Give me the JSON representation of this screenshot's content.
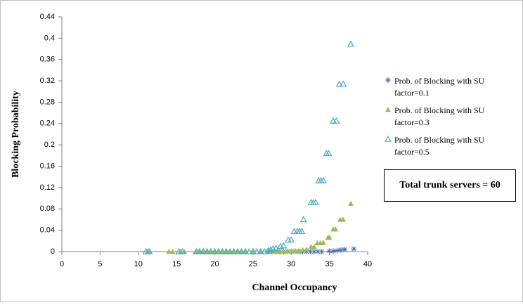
{
  "chart_data": {
    "type": "scatter",
    "x_label": "Channel Occupancy",
    "y_label": "Blocking Probability",
    "annotation": "Total trunk servers = 60",
    "xlim": [
      0,
      40
    ],
    "xticks": [
      0,
      5,
      10,
      15,
      20,
      25,
      30,
      35,
      40
    ],
    "ylim": [
      0,
      0.44
    ],
    "yticks": [
      0,
      0.04,
      0.08,
      0.12,
      0.16,
      0.2,
      0.24,
      0.28,
      0.32,
      0.36,
      0.4,
      0.44
    ],
    "legend": "right",
    "series": [
      {
        "name": "Prob. of Blocking with SU factor=0.1",
        "color": "#4a6fb5",
        "marker": "asterisk",
        "x": [
          27,
          27.5,
          28,
          28.5,
          29,
          29.5,
          30,
          30.5,
          31,
          31.5,
          32,
          32.5,
          33,
          33.5,
          34,
          35,
          35.5,
          36,
          36.5,
          37,
          38.2
        ],
        "values": [
          0,
          0,
          0,
          0,
          0,
          0,
          0,
          0,
          0,
          0,
          0,
          0,
          0,
          0,
          0,
          0.001,
          0.001,
          0.002,
          0.003,
          0.004,
          0.005
        ]
      },
      {
        "name": "Prob. of Blocking with SU factor=0.3",
        "color": "#9bbb59",
        "marker": "triangle",
        "x": [
          11.2,
          11.5,
          14,
          14.5,
          15.5,
          16,
          17.5,
          18,
          18.5,
          19,
          19.5,
          20,
          20.5,
          21,
          21.5,
          22,
          22.5,
          23,
          23.5,
          24,
          25,
          26,
          27,
          27.5,
          28,
          28.5,
          29,
          29.5,
          30,
          30.5,
          31,
          31.5,
          32,
          32.6,
          33,
          33.4,
          33.8,
          34.2,
          34.8,
          35,
          35.5,
          35.8,
          36.4,
          36.8,
          37.8
        ],
        "values": [
          0,
          0,
          0,
          0,
          0,
          0,
          0,
          0,
          0,
          0,
          0,
          0,
          0,
          0,
          0,
          0,
          0,
          0,
          0,
          0,
          0,
          0,
          0,
          0,
          0,
          0,
          0,
          0.001,
          0.001,
          0.002,
          0.002,
          0.003,
          0.004,
          0.009,
          0.009,
          0.016,
          0.016,
          0.017,
          0.026,
          0.027,
          0.042,
          0.042,
          0.06,
          0.06,
          0.09
        ]
      },
      {
        "name": "Prob. of Blocking with SU factor=0.5",
        "color": "#4bacc6",
        "marker": "hollow-triangle",
        "x": [
          11,
          11.4,
          15.3,
          15.8,
          17.6,
          18,
          18.5,
          19,
          19.5,
          20,
          20.5,
          21,
          21.5,
          22,
          22.5,
          23,
          23.5,
          24,
          24.5,
          25,
          25.5,
          26,
          26.5,
          27,
          27.3,
          27.6,
          28,
          28.6,
          29,
          29.6,
          30,
          30.4,
          30.8,
          31.1,
          31.4,
          31.6,
          32.6,
          32.9,
          33.2,
          33.6,
          33.9,
          34.2,
          34.6,
          34.9,
          35.5,
          35.9,
          36.3,
          36.8,
          37.8
        ],
        "values": [
          0,
          0,
          0,
          0,
          0,
          0,
          0,
          0,
          0,
          0,
          0,
          0,
          0,
          0,
          0,
          0,
          0,
          0,
          0,
          0,
          0,
          0,
          0,
          0.002,
          0.003,
          0.005,
          0.006,
          0.01,
          0.011,
          0.022,
          0.022,
          0.038,
          0.038,
          0.038,
          0.038,
          0.06,
          0.092,
          0.092,
          0.092,
          0.133,
          0.133,
          0.133,
          0.184,
          0.184,
          0.245,
          0.245,
          0.314,
          0.314,
          0.389
        ]
      }
    ]
  }
}
